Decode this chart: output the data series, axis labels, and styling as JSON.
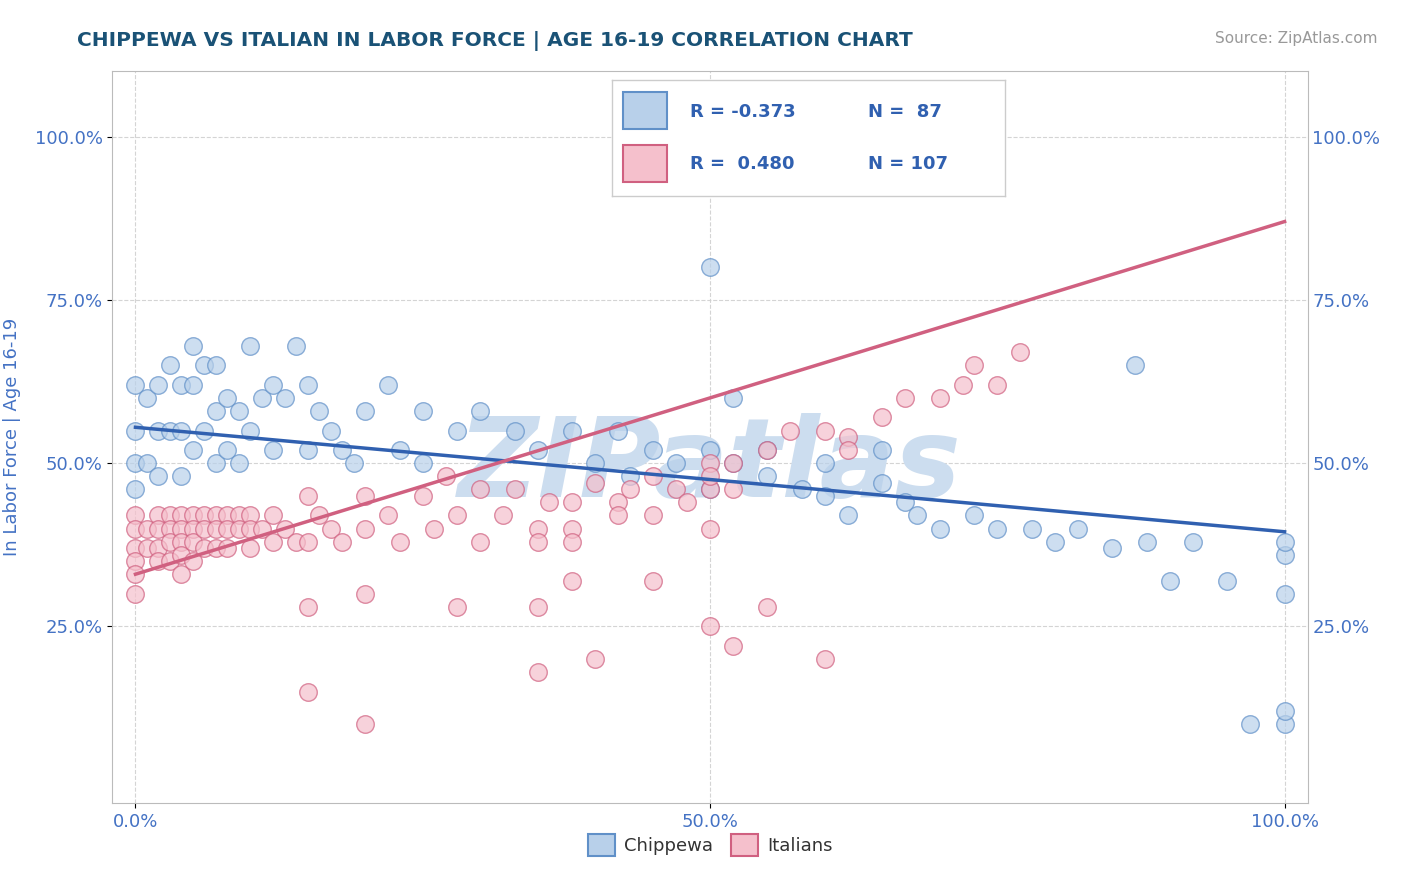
{
  "title": "CHIPPEWA VS ITALIAN IN LABOR FORCE | AGE 16-19 CORRELATION CHART",
  "source_text": "Source: ZipAtlas.com",
  "ylabel": "In Labor Force | Age 16-19",
  "xlim": [
    -0.02,
    1.02
  ],
  "ylim": [
    -0.02,
    1.1
  ],
  "xtick_positions": [
    0.0,
    0.5,
    1.0
  ],
  "xticklabels": [
    "0.0%",
    "50.0%",
    "100.0%"
  ],
  "ytick_positions": [
    0.25,
    0.5,
    0.75,
    1.0
  ],
  "yticklabels": [
    "25.0%",
    "50.0%",
    "75.0%",
    "100.0%"
  ],
  "legend_r_blue": "-0.373",
  "legend_n_blue": "87",
  "legend_r_pink": "0.480",
  "legend_n_pink": "107",
  "blue_marker_color": "#b8d0ea",
  "blue_edge_color": "#6090c8",
  "pink_marker_color": "#f5c0cc",
  "pink_edge_color": "#d06080",
  "blue_line_color": "#3060b0",
  "pink_line_color": "#d06080",
  "title_color": "#1a5276",
  "axis_label_color": "#4472c4",
  "tick_color": "#4472c4",
  "watermark_text": "ZIPatlas",
  "watermark_color": "#ccddef",
  "grid_color": "#d0d0d0",
  "background_color": "#ffffff",
  "blue_scatter_x": [
    0.0,
    0.0,
    0.0,
    0.0,
    0.01,
    0.01,
    0.02,
    0.02,
    0.02,
    0.03,
    0.03,
    0.04,
    0.04,
    0.04,
    0.05,
    0.05,
    0.05,
    0.06,
    0.06,
    0.07,
    0.07,
    0.07,
    0.08,
    0.08,
    0.09,
    0.09,
    0.1,
    0.1,
    0.11,
    0.12,
    0.12,
    0.13,
    0.14,
    0.15,
    0.15,
    0.16,
    0.17,
    0.18,
    0.19,
    0.2,
    0.22,
    0.23,
    0.25,
    0.25,
    0.28,
    0.3,
    0.33,
    0.35,
    0.38,
    0.4,
    0.42,
    0.43,
    0.45,
    0.47,
    0.5,
    0.5,
    0.52,
    0.55,
    0.58,
    0.6,
    0.62,
    0.65,
    0.67,
    0.5,
    0.52,
    0.55,
    0.6,
    0.65,
    0.68,
    0.7,
    0.73,
    0.75,
    0.78,
    0.8,
    0.82,
    0.85,
    0.87,
    0.88,
    0.9,
    0.92,
    0.95,
    0.97,
    1.0,
    1.0,
    1.0,
    1.0,
    1.0
  ],
  "blue_scatter_y": [
    0.62,
    0.55,
    0.5,
    0.46,
    0.6,
    0.5,
    0.62,
    0.55,
    0.48,
    0.65,
    0.55,
    0.62,
    0.55,
    0.48,
    0.68,
    0.62,
    0.52,
    0.65,
    0.55,
    0.65,
    0.58,
    0.5,
    0.6,
    0.52,
    0.58,
    0.5,
    0.68,
    0.55,
    0.6,
    0.62,
    0.52,
    0.6,
    0.68,
    0.62,
    0.52,
    0.58,
    0.55,
    0.52,
    0.5,
    0.58,
    0.62,
    0.52,
    0.58,
    0.5,
    0.55,
    0.58,
    0.55,
    0.52,
    0.55,
    0.5,
    0.55,
    0.48,
    0.52,
    0.5,
    0.52,
    0.46,
    0.5,
    0.48,
    0.46,
    0.45,
    0.42,
    0.47,
    0.44,
    0.8,
    0.6,
    0.52,
    0.5,
    0.52,
    0.42,
    0.4,
    0.42,
    0.4,
    0.4,
    0.38,
    0.4,
    0.37,
    0.65,
    0.38,
    0.32,
    0.38,
    0.32,
    0.1,
    0.36,
    0.3,
    0.1,
    0.38,
    0.12
  ],
  "pink_scatter_x": [
    0.0,
    0.0,
    0.0,
    0.0,
    0.0,
    0.0,
    0.01,
    0.01,
    0.02,
    0.02,
    0.02,
    0.02,
    0.03,
    0.03,
    0.03,
    0.03,
    0.04,
    0.04,
    0.04,
    0.04,
    0.04,
    0.05,
    0.05,
    0.05,
    0.05,
    0.06,
    0.06,
    0.06,
    0.07,
    0.07,
    0.07,
    0.08,
    0.08,
    0.08,
    0.09,
    0.09,
    0.1,
    0.1,
    0.1,
    0.11,
    0.12,
    0.12,
    0.13,
    0.14,
    0.15,
    0.15,
    0.16,
    0.17,
    0.18,
    0.2,
    0.2,
    0.22,
    0.23,
    0.25,
    0.26,
    0.27,
    0.28,
    0.3,
    0.3,
    0.32,
    0.33,
    0.35,
    0.36,
    0.38,
    0.38,
    0.4,
    0.42,
    0.43,
    0.45,
    0.47,
    0.48,
    0.5,
    0.5,
    0.52,
    0.55,
    0.57,
    0.6,
    0.62,
    0.65,
    0.35,
    0.38,
    0.52,
    0.6,
    0.62,
    0.67,
    0.7,
    0.72,
    0.73,
    0.75,
    0.77,
    0.35,
    0.42,
    0.5,
    0.52,
    0.15,
    0.2,
    0.45,
    0.5,
    0.15,
    0.2,
    0.35,
    0.4,
    0.55,
    0.5,
    0.38,
    0.45,
    0.28
  ],
  "pink_scatter_y": [
    0.42,
    0.4,
    0.37,
    0.35,
    0.33,
    0.3,
    0.4,
    0.37,
    0.42,
    0.4,
    0.37,
    0.35,
    0.42,
    0.4,
    0.38,
    0.35,
    0.42,
    0.4,
    0.38,
    0.36,
    0.33,
    0.42,
    0.4,
    0.38,
    0.35,
    0.42,
    0.4,
    0.37,
    0.42,
    0.4,
    0.37,
    0.42,
    0.4,
    0.37,
    0.42,
    0.4,
    0.42,
    0.4,
    0.37,
    0.4,
    0.42,
    0.38,
    0.4,
    0.38,
    0.45,
    0.38,
    0.42,
    0.4,
    0.38,
    0.45,
    0.4,
    0.42,
    0.38,
    0.45,
    0.4,
    0.48,
    0.42,
    0.46,
    0.38,
    0.42,
    0.46,
    0.4,
    0.44,
    0.44,
    0.4,
    0.47,
    0.44,
    0.46,
    0.48,
    0.46,
    0.44,
    0.5,
    0.46,
    0.5,
    0.52,
    0.55,
    0.55,
    0.54,
    0.57,
    0.28,
    0.38,
    0.22,
    0.2,
    0.52,
    0.6,
    0.6,
    0.62,
    0.65,
    0.62,
    0.67,
    0.38,
    0.42,
    0.4,
    0.46,
    0.28,
    0.3,
    0.42,
    0.48,
    0.15,
    0.1,
    0.18,
    0.2,
    0.28,
    0.25,
    0.32,
    0.32,
    0.28
  ],
  "blue_trend_x0": 0.0,
  "blue_trend_y0": 0.555,
  "blue_trend_x1": 1.0,
  "blue_trend_y1": 0.395,
  "pink_trend_x0": 0.0,
  "pink_trend_y0": 0.33,
  "pink_trend_x1": 1.0,
  "pink_trend_y1": 0.87
}
